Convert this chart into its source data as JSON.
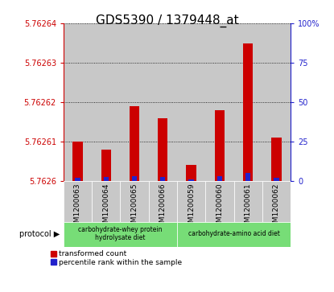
{
  "title": "GDS5390 / 1379448_at",
  "samples": [
    "GSM1200063",
    "GSM1200064",
    "GSM1200065",
    "GSM1200066",
    "GSM1200059",
    "GSM1200060",
    "GSM1200061",
    "GSM1200062"
  ],
  "red_values": [
    5.76261,
    5.762608,
    5.762619,
    5.762616,
    5.762604,
    5.762618,
    5.762635,
    5.762611
  ],
  "blue_values": [
    2.0,
    2.5,
    3.0,
    2.5,
    1.0,
    3.0,
    5.0,
    2.0
  ],
  "ylim_left": [
    5.7626,
    5.76264
  ],
  "ylim_right": [
    0,
    100
  ],
  "yticks_left": [
    5.7626,
    5.76261,
    5.76262,
    5.76263,
    5.76264
  ],
  "ytick_labels_left": [
    "5.7626",
    "5.76261",
    "5.76262",
    "5.76263",
    "5.76264"
  ],
  "yticks_right": [
    0,
    25,
    50,
    75,
    100
  ],
  "ytick_labels_right": [
    "0",
    "25",
    "50",
    "75",
    "100%"
  ],
  "groups": [
    {
      "label": "carbohydrate-whey protein\nhydrolysate diet",
      "start": 0,
      "end": 4,
      "color": "#77DD77"
    },
    {
      "label": "carbohydrate-amino acid diet",
      "start": 4,
      "end": 8,
      "color": "#77DD77"
    }
  ],
  "protocol_label": "protocol",
  "red_bar_color": "#cc0000",
  "blue_bar_color": "#2222cc",
  "background_color": "#ffffff",
  "plot_bg_color": "#ffffff",
  "grid_color": "#000000",
  "axis_left_color": "#cc0000",
  "axis_right_color": "#2222cc",
  "sample_bg_color": "#c8c8c8",
  "title_fontsize": 11
}
